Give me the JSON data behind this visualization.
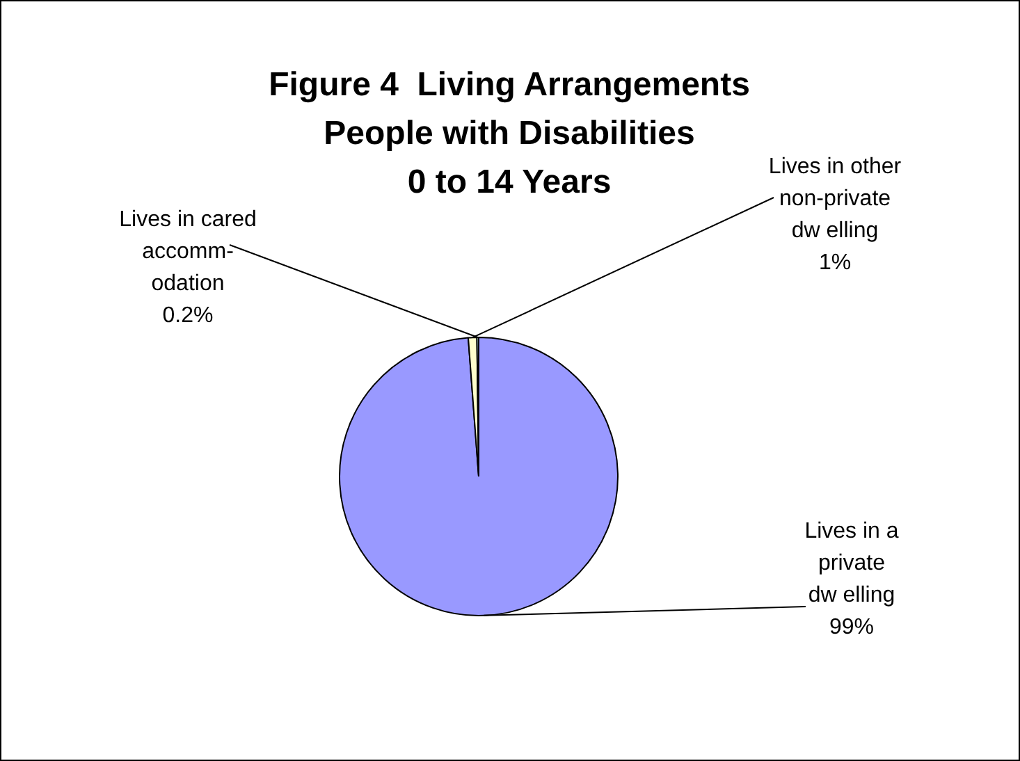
{
  "chart_data": {
    "type": "pie",
    "title": "Figure 4  Living Arrangements\nPeople with Disabilities\n0 to 14 Years",
    "categories": [
      "Lives in a\nprivate\ndw elling",
      "Lives in other\nnon-private\ndw elling",
      "Lives in cared\naccomm-\nodation"
    ],
    "values": [
      99,
      1,
      0.2
    ],
    "colors": [
      "#9999ff",
      "#ffffcc",
      "#ccffff"
    ],
    "value_labels": [
      "99%",
      "1%",
      "0.2%"
    ],
    "legend": false
  }
}
